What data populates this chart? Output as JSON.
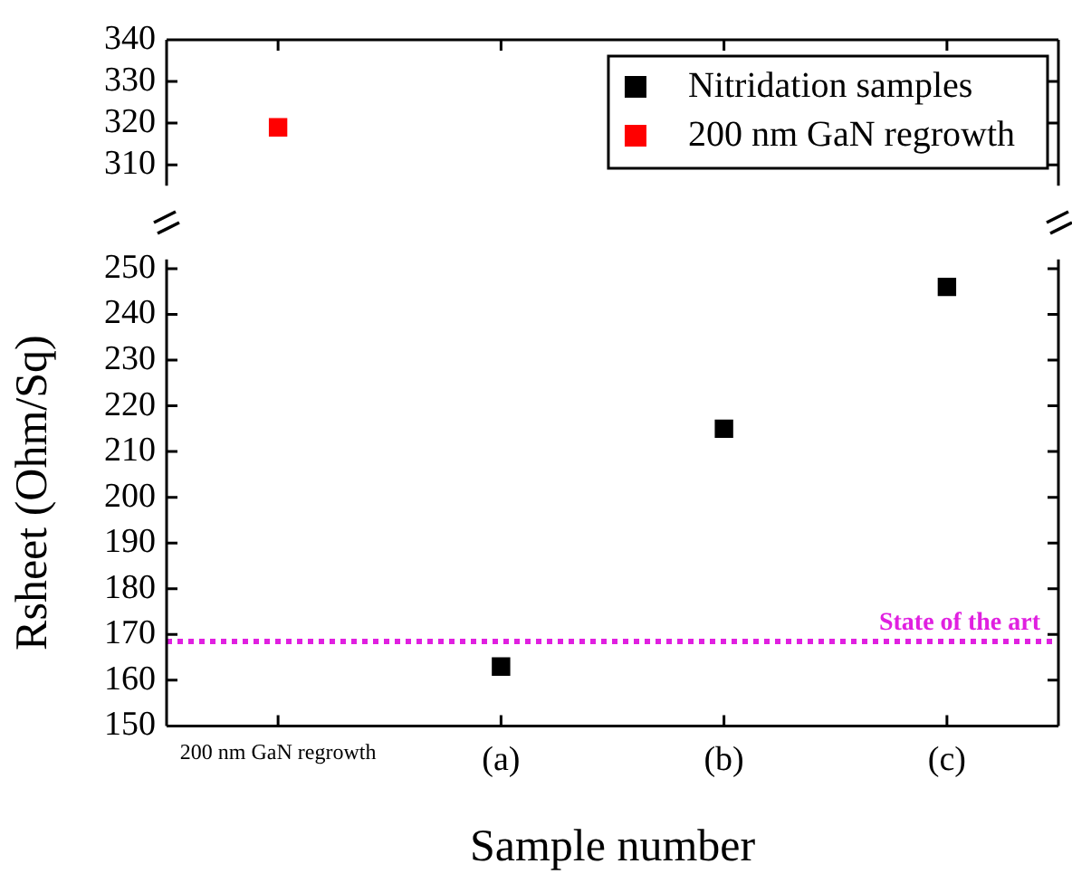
{
  "chart_data": [
    {
      "type": "scatter",
      "categories": [
        null,
        null,
        null,
        null
      ],
      "series": [
        {
          "name": "Nitridation samples",
          "color": "#000000",
          "values": [
            null,
            null,
            null,
            null
          ]
        },
        {
          "name": "200 nm GaN regrowth",
          "color": "#ff0000",
          "values": [
            319,
            null,
            null,
            null
          ]
        }
      ],
      "ylim": [
        305,
        340
      ],
      "yticks": [
        310,
        320,
        330,
        340
      ],
      "tick_labels": "y",
      "marker": "square",
      "legend": "top right",
      "grid": false
    },
    {
      "type": "scatter",
      "xlabel": "Sample number",
      "ylabel": "Rsheet (Ohm/Sq)",
      "categories": [
        "200 nm GaN regrowth",
        "(a)",
        "(b)",
        "(c)"
      ],
      "series": [
        {
          "color": "#000000",
          "values": [
            null,
            163,
            215,
            246
          ]
        }
      ],
      "ylim": [
        150,
        252
      ],
      "yticks": [
        150,
        160,
        170,
        180,
        190,
        200,
        210,
        220,
        230,
        240,
        250
      ],
      "ref_lines": [
        {
          "axis": "y",
          "value": 168.5,
          "label": "State of the art",
          "color": "#e020e0",
          "line_style": "dotted"
        }
      ],
      "marker": "square",
      "grid": false
    }
  ]
}
